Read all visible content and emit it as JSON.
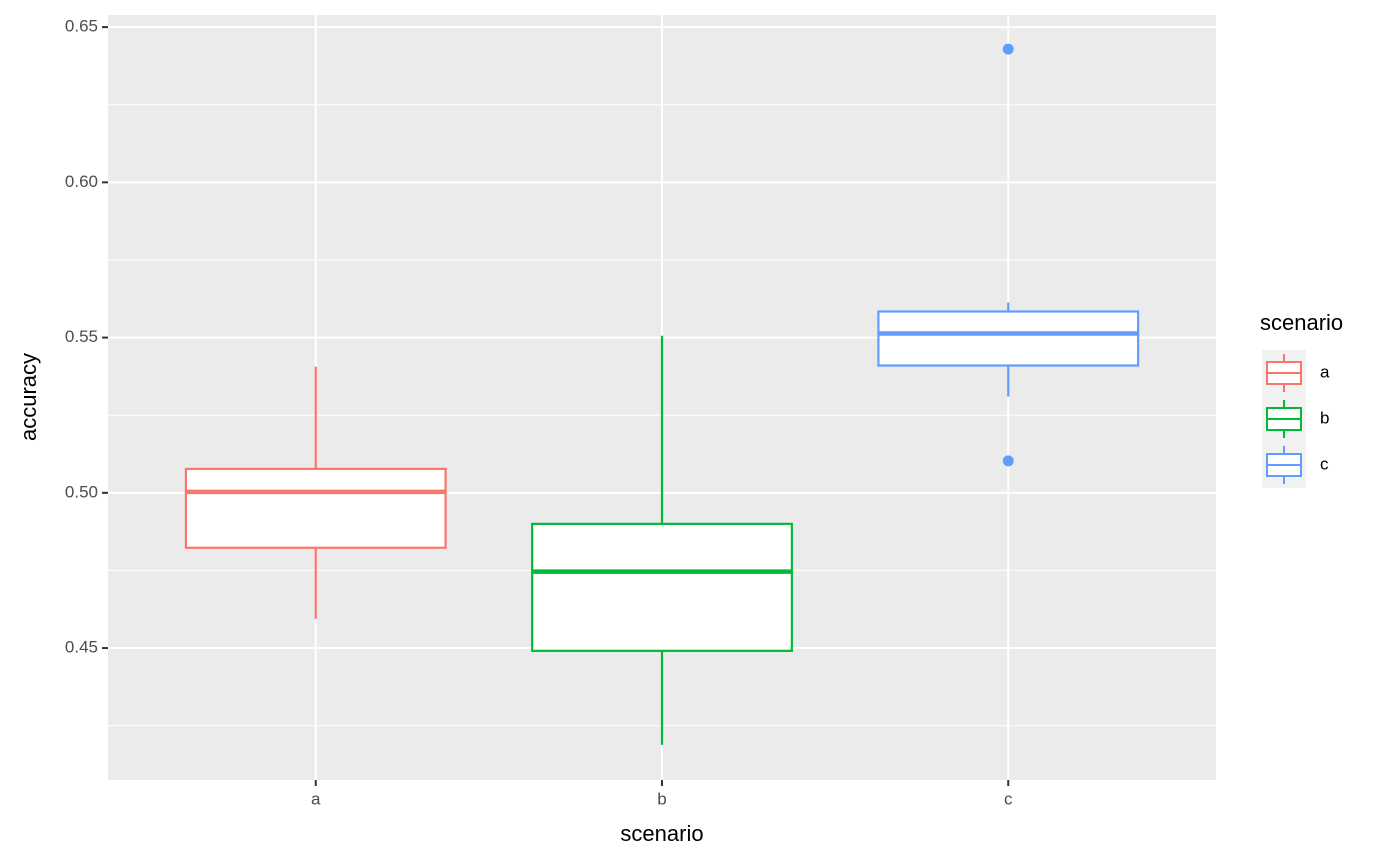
{
  "chart_data": {
    "type": "box",
    "x_label": "scenario",
    "y_label": "accuracy",
    "legend_title": "scenario",
    "categories": [
      "a",
      "b",
      "c"
    ],
    "boxes": [
      {
        "color": "#f8766d",
        "whisker_low": 0.4594,
        "q1": 0.4823,
        "median": 0.5003,
        "q3": 0.5077,
        "whisker_high": 0.5406,
        "outliers": []
      },
      {
        "color": "#00ba38",
        "whisker_low": 0.4188,
        "q1": 0.4491,
        "median": 0.4746,
        "q3": 0.49,
        "whisker_high": 0.5506,
        "outliers": []
      },
      {
        "color": "#619cff",
        "whisker_low": 0.531,
        "q1": 0.541,
        "median": 0.5513,
        "q3": 0.5584,
        "whisker_high": 0.5613,
        "outliers": [
          0.6429,
          0.5103
        ]
      }
    ],
    "ylim": [
      0.4075,
      0.6539
    ],
    "yticks": [
      {
        "value": 0.45,
        "label": "0.45"
      },
      {
        "value": 0.5,
        "label": "0.50"
      },
      {
        "value": 0.55,
        "label": "0.55"
      },
      {
        "value": 0.6,
        "label": "0.60"
      },
      {
        "value": 0.65,
        "label": "0.65"
      }
    ],
    "minor_yticks": [
      0.425,
      0.475,
      0.525,
      0.575,
      0.625
    ],
    "grid": true
  }
}
